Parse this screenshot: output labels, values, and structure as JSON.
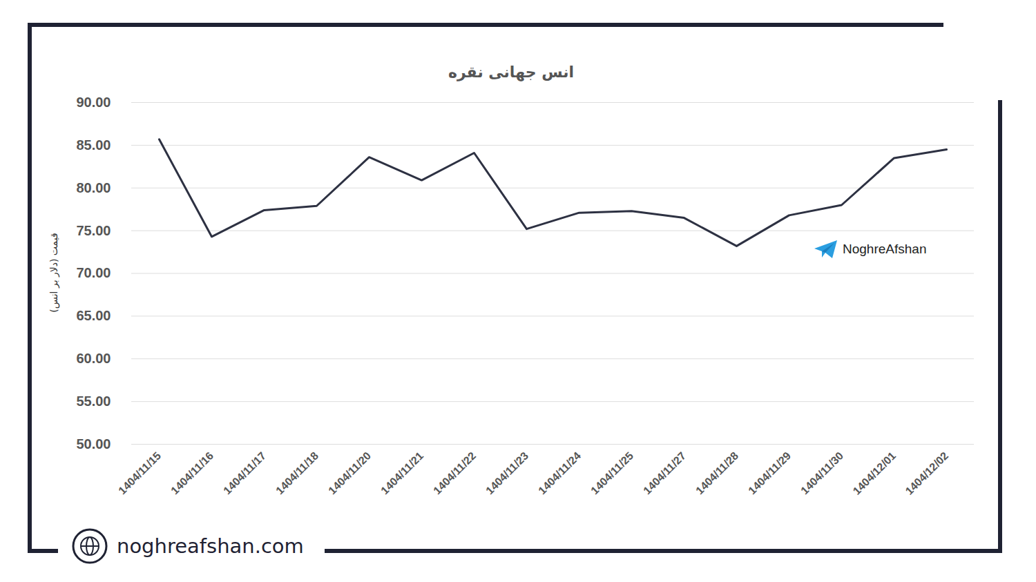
{
  "chart_data": {
    "type": "line",
    "title": "انس جهانی نقره",
    "y_label": "قیمت (دلار بر انس)",
    "categories": [
      "1404/11/15",
      "1404/11/16",
      "1404/11/17",
      "1404/11/18",
      "1404/11/20",
      "1404/11/21",
      "1404/11/22",
      "1404/11/23",
      "1404/11/24",
      "1404/11/25",
      "1404/11/27",
      "1404/11/28",
      "1404/11/29",
      "1404/11/30",
      "1404/12/01",
      "1404/12/02"
    ],
    "values": [
      85.7,
      74.3,
      77.4,
      77.9,
      83.6,
      80.9,
      84.1,
      75.2,
      77.1,
      77.3,
      76.5,
      73.2,
      76.8,
      78.0,
      83.5,
      84.5
    ],
    "color": "#2d3142",
    "ylim": [
      50,
      90
    ],
    "yticks": [
      {
        "value": 50,
        "label": "50.00"
      },
      {
        "value": 55,
        "label": "55.00"
      },
      {
        "value": 60,
        "label": "60.00"
      },
      {
        "value": 65,
        "label": "65.00"
      },
      {
        "value": 70,
        "label": "70.00"
      },
      {
        "value": 75,
        "label": "75.00"
      },
      {
        "value": 80,
        "label": "80.00"
      },
      {
        "value": 85,
        "label": "85.00"
      },
      {
        "value": 90,
        "label": "90.00"
      }
    ],
    "grid": true,
    "annotations": [
      "NoghreAfshan",
      "noghreafshan.com"
    ]
  }
}
